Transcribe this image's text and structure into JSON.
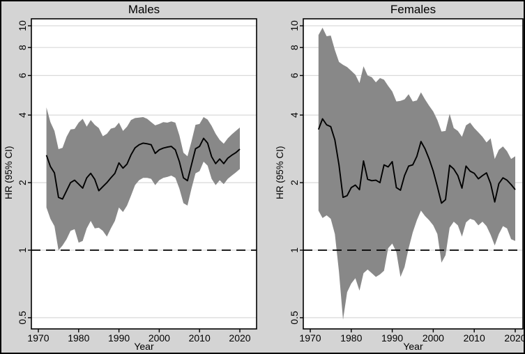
{
  "figure": {
    "colors": {
      "background": "#d4d4d4",
      "plot_background": "#ffffff",
      "ci_band": "#888888",
      "gridline": "#d9d9d9",
      "line": "#000000",
      "frame": "#000000"
    }
  },
  "chart_data": [
    {
      "type": "area",
      "title": "Males",
      "xlabel": "Year",
      "ylabel": "HR (95% CI)",
      "yscale": "log",
      "ylim": [
        0.45,
        10.8
      ],
      "xlim": [
        1968.3,
        2024.2
      ],
      "grid": true,
      "reference_line": 1,
      "yticks": [
        0.5,
        1,
        2,
        4,
        6,
        8,
        10
      ],
      "ytick_labels": [
        "0.5",
        "1",
        "2",
        "4",
        "6",
        "8",
        "10"
      ],
      "xticks": [
        1970,
        1980,
        1990,
        2000,
        2010,
        2020
      ],
      "xtick_labels": [
        "1970",
        "1980",
        "1990",
        "2000",
        "2010",
        "2020"
      ],
      "years": [
        1972,
        1973,
        1974,
        1975,
        1976,
        1977,
        1978,
        1979,
        1980,
        1981,
        1982,
        1983,
        1984,
        1985,
        1986,
        1987,
        1988,
        1989,
        1990,
        1991,
        1992,
        1993,
        1994,
        1995,
        1996,
        1997,
        1998,
        1999,
        2000,
        2001,
        2002,
        2003,
        2004,
        2005,
        2006,
        2007,
        2008,
        2009,
        2010,
        2011,
        2012,
        2013,
        2014,
        2015,
        2016,
        2017,
        2018,
        2019,
        2020
      ],
      "hr": [
        2.65,
        2.36,
        2.21,
        1.72,
        1.69,
        1.84,
        2.0,
        2.05,
        1.97,
        1.89,
        2.1,
        2.2,
        2.07,
        1.84,
        1.92,
        2.0,
        2.1,
        2.2,
        2.45,
        2.32,
        2.42,
        2.66,
        2.86,
        2.95,
        3.0,
        2.98,
        2.95,
        2.7,
        2.8,
        2.85,
        2.88,
        2.9,
        2.8,
        2.48,
        2.1,
        2.04,
        2.4,
        2.83,
        2.9,
        3.15,
        3.0,
        2.61,
        2.43,
        2.55,
        2.43,
        2.57,
        2.65,
        2.72,
        2.82
      ],
      "ci_lower": [
        1.55,
        1.38,
        1.28,
        1.0,
        1.05,
        1.12,
        1.22,
        1.24,
        1.08,
        1.1,
        1.25,
        1.35,
        1.25,
        1.26,
        1.22,
        1.15,
        1.25,
        1.35,
        1.55,
        1.48,
        1.58,
        1.75,
        1.95,
        2.05,
        2.1,
        2.1,
        2.08,
        1.95,
        2.05,
        2.1,
        2.12,
        2.15,
        2.1,
        1.88,
        1.62,
        1.58,
        1.88,
        2.2,
        2.25,
        2.48,
        2.38,
        2.08,
        1.95,
        2.05,
        1.97,
        2.08,
        2.15,
        2.22,
        2.3
      ],
      "ci_upper": [
        4.33,
        3.72,
        3.4,
        2.82,
        2.86,
        3.2,
        3.45,
        3.47,
        3.7,
        3.85,
        3.55,
        3.8,
        3.62,
        3.5,
        3.22,
        3.3,
        3.48,
        3.52,
        3.7,
        3.4,
        3.55,
        3.8,
        3.88,
        3.9,
        3.92,
        3.85,
        3.72,
        3.6,
        3.65,
        3.72,
        3.7,
        3.75,
        3.7,
        3.25,
        2.72,
        2.62,
        3.05,
        3.62,
        3.65,
        3.92,
        3.82,
        3.58,
        3.3,
        3.1,
        2.98,
        3.15,
        3.28,
        3.4,
        3.52
      ]
    },
    {
      "type": "area",
      "title": "Females",
      "xlabel": "Year",
      "ylabel": "HR (95% CI)",
      "yscale": "log",
      "ylim": [
        0.45,
        10.8
      ],
      "xlim": [
        1968.3,
        2022.0
      ],
      "grid": true,
      "reference_line": 1,
      "yticks": [
        0.5,
        1,
        2,
        4,
        6,
        8,
        10
      ],
      "ytick_labels": [
        "0.5",
        "1",
        "2",
        "4",
        "6",
        "8",
        "10"
      ],
      "xticks": [
        1970,
        1980,
        1990,
        2000,
        2010,
        2020
      ],
      "xtick_labels": [
        "1970",
        "1980",
        "1990",
        "2000",
        "2010",
        "2020"
      ],
      "years": [
        1972,
        1973,
        1974,
        1975,
        1976,
        1977,
        1978,
        1979,
        1980,
        1981,
        1982,
        1983,
        1984,
        1985,
        1986,
        1987,
        1988,
        1989,
        1990,
        1991,
        1992,
        1993,
        1994,
        1995,
        1996,
        1997,
        1998,
        1999,
        2000,
        2001,
        2002,
        2003,
        2004,
        2005,
        2006,
        2007,
        2008,
        2009,
        2010,
        2011,
        2012,
        2013,
        2014,
        2015,
        2016,
        2017,
        2018,
        2019,
        2020
      ],
      "hr": [
        3.45,
        3.85,
        3.62,
        3.55,
        3.1,
        2.4,
        1.72,
        1.75,
        1.9,
        1.95,
        1.86,
        2.5,
        2.07,
        2.04,
        2.05,
        2.0,
        2.4,
        2.35,
        2.48,
        1.9,
        1.85,
        2.15,
        2.37,
        2.4,
        2.62,
        3.05,
        2.83,
        2.55,
        2.25,
        1.92,
        1.62,
        1.68,
        2.39,
        2.3,
        2.15,
        1.89,
        2.37,
        2.25,
        2.2,
        2.08,
        2.15,
        2.21,
        1.98,
        1.64,
        1.98,
        2.1,
        2.05,
        1.96,
        1.86
      ],
      "ci_lower": [
        1.5,
        1.39,
        1.43,
        1.38,
        1.18,
        0.8,
        0.49,
        0.65,
        0.71,
        0.75,
        0.66,
        0.79,
        0.82,
        0.79,
        0.76,
        0.78,
        0.81,
        1.02,
        1.07,
        0.98,
        0.76,
        0.84,
        1.02,
        1.2,
        1.36,
        1.5,
        1.42,
        1.36,
        1.29,
        1.18,
        0.88,
        0.95,
        1.26,
        1.34,
        1.29,
        1.15,
        1.33,
        1.38,
        1.36,
        1.29,
        1.34,
        1.28,
        1.17,
        1.05,
        1.18,
        1.28,
        1.25,
        1.12,
        1.1
      ],
      "ci_upper": [
        9.1,
        9.8,
        8.98,
        9.05,
        7.8,
        6.9,
        6.7,
        6.55,
        6.3,
        6.05,
        5.55,
        6.6,
        6.0,
        5.9,
        5.6,
        5.85,
        5.75,
        5.4,
        5.1,
        4.6,
        4.63,
        4.7,
        4.95,
        4.6,
        4.65,
        5.05,
        4.7,
        4.4,
        4.15,
        3.8,
        3.38,
        3.4,
        4.05,
        3.5,
        3.4,
        3.2,
        3.6,
        3.7,
        3.5,
        3.35,
        3.2,
        3.02,
        3.15,
        2.55,
        2.8,
        2.9,
        2.76,
        2.55,
        2.62
      ]
    }
  ]
}
